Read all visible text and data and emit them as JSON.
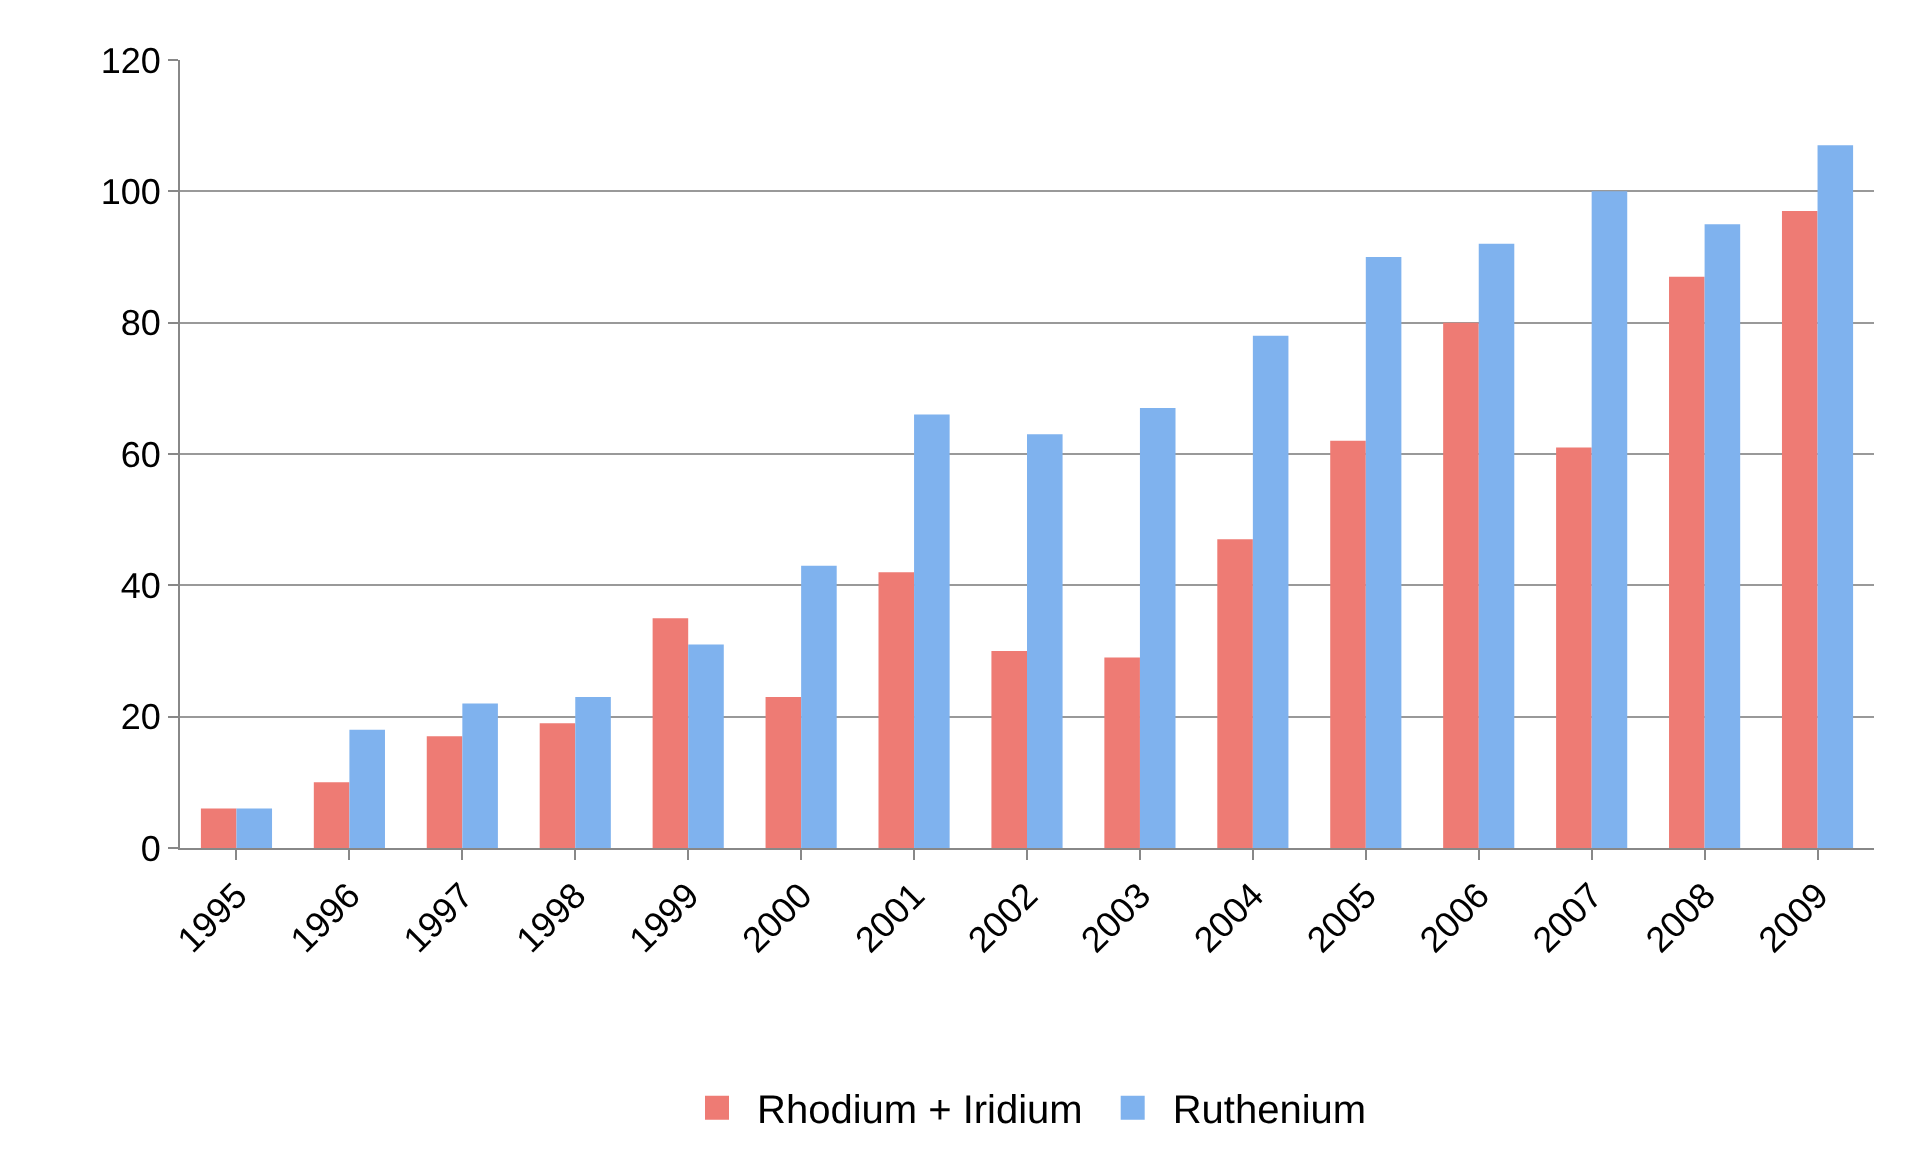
{
  "chart_data": {
    "type": "bar",
    "categories": [
      "1995",
      "1996",
      "1997",
      "1998",
      "1999",
      "2000",
      "2001",
      "2002",
      "2003",
      "2004",
      "2005",
      "2006",
      "2007",
      "2008",
      "2009"
    ],
    "series": [
      {
        "name": "Rhodium + Iridium",
        "color": "#ee7b74",
        "values": [
          6,
          10,
          17,
          19,
          35,
          23,
          42,
          30,
          29,
          47,
          62,
          80,
          61,
          87,
          97
        ]
      },
      {
        "name": "Ruthenium",
        "color": "#7fb2ee",
        "values": [
          6,
          18,
          22,
          23,
          31,
          43,
          66,
          63,
          67,
          78,
          90,
          92,
          100,
          95,
          107
        ]
      }
    ],
    "ylim": [
      0,
      120
    ],
    "yticks": [
      0,
      20,
      40,
      60,
      80,
      100,
      120
    ],
    "grid": "y",
    "legend": "bottom"
  }
}
